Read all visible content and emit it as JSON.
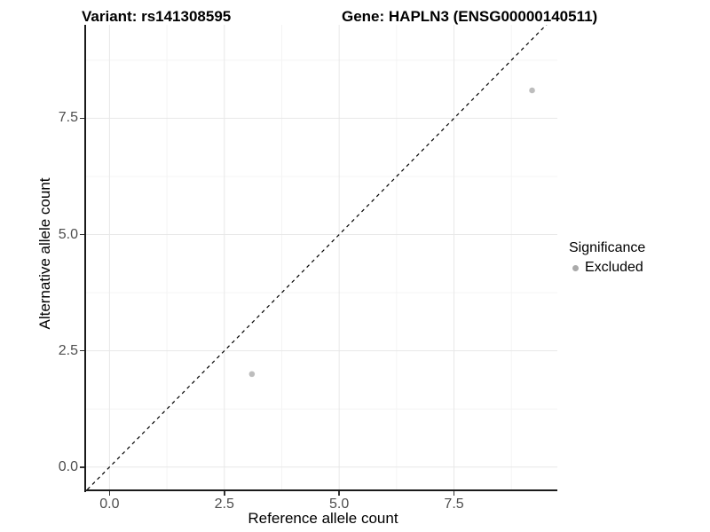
{
  "chart_data": {
    "type": "scatter",
    "title_left": "Variant: rs141308595",
    "title_right": "Gene: HAPLN3 (ENSG00000140511)",
    "xlabel": "Reference allele count",
    "ylabel": "Alternative allele count",
    "x_tick_labels": [
      "0.0",
      "2.5",
      "5.0",
      "7.5"
    ],
    "x_tick_values": [
      0,
      2.5,
      5,
      7.5
    ],
    "y_tick_labels": [
      "0.0",
      "2.5",
      "5.0",
      "7.5"
    ],
    "y_tick_values": [
      0,
      2.5,
      5,
      7.5
    ],
    "x_minor_gridlines": [
      1.25,
      3.75,
      6.25,
      8.75
    ],
    "y_minor_gridlines": [
      1.25,
      3.75,
      6.25,
      8.75
    ],
    "xlim": [
      -0.51,
      9.75
    ],
    "ylim": [
      -0.5,
      9.51
    ],
    "grid": "major+minor",
    "points": [
      {
        "x": 3.1,
        "y": 2.0,
        "series": "Excluded"
      },
      {
        "x": 9.2,
        "y": 8.1,
        "series": "Excluded"
      }
    ],
    "identity_line": {
      "style": "dashed",
      "x1": -0.7,
      "y1": -0.7,
      "x2": 9.9,
      "y2": 9.9
    },
    "legend": {
      "title": "Significance",
      "position": "right",
      "items": [
        {
          "label": "Excluded",
          "marker": "circle",
          "color": "#aaaaaa"
        }
      ]
    }
  },
  "colors": {
    "point": "#bdbdbd",
    "grid_major": "#e8e8e8",
    "grid_minor": "#f4f4f4",
    "axis_line": "#1a1a1a",
    "tick_mark": "#333333",
    "tick_label": "#4d4d4d",
    "dashed_line": "#000000"
  }
}
